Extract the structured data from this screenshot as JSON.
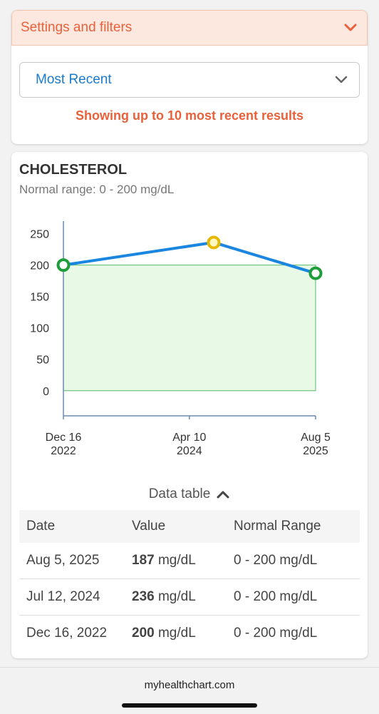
{
  "filters": {
    "title": "Settings and filters",
    "sort_value": "Most Recent",
    "note": "Showing up to 10 most recent results"
  },
  "chart_data": {
    "type": "line",
    "title": "CHOLESTEROL",
    "subtitle": "Normal range: 0 - 200 mg/dL",
    "x_ticks": [
      {
        "date": "2022-12-16",
        "line1": "Dec 16",
        "line2": "2022"
      },
      {
        "date": "2024-04-10",
        "line1": "Apr 10",
        "line2": "2024"
      },
      {
        "date": "2025-08-05",
        "line1": "Aug 5",
        "line2": "2025"
      }
    ],
    "y_ticks": [
      0,
      50,
      100,
      150,
      200,
      250
    ],
    "ylim": [
      -40,
      270
    ],
    "normal_range": [
      0,
      200
    ],
    "series": [
      {
        "points": [
          {
            "date": "2022-12-16",
            "value": 200,
            "status": "normal"
          },
          {
            "date": "2024-07-12",
            "value": 236,
            "status": "high"
          },
          {
            "date": "2025-08-05",
            "value": 187,
            "status": "normal"
          }
        ]
      }
    ],
    "colors": {
      "line": "#1a86e0",
      "normal": "#1e9e3a",
      "high": "#e5b800",
      "range_fill": "#e8f9e6",
      "range_stroke": "#58b868"
    }
  },
  "data_table": {
    "toggle_label": "Data table",
    "headers": [
      "Date",
      "Value",
      "Normal Range"
    ],
    "rows": [
      {
        "date": "Aug 5, 2025",
        "value": "187",
        "unit": "mg/dL",
        "range": "0 - 200 mg/dL"
      },
      {
        "date": "Jul 12, 2024",
        "value": "236",
        "unit": "mg/dL",
        "range": "0 - 200 mg/dL"
      },
      {
        "date": "Dec 16, 2022",
        "value": "200",
        "unit": "mg/dL",
        "range": "0 - 200 mg/dL"
      }
    ]
  },
  "footer": {
    "url": "myhealthchart.com"
  }
}
